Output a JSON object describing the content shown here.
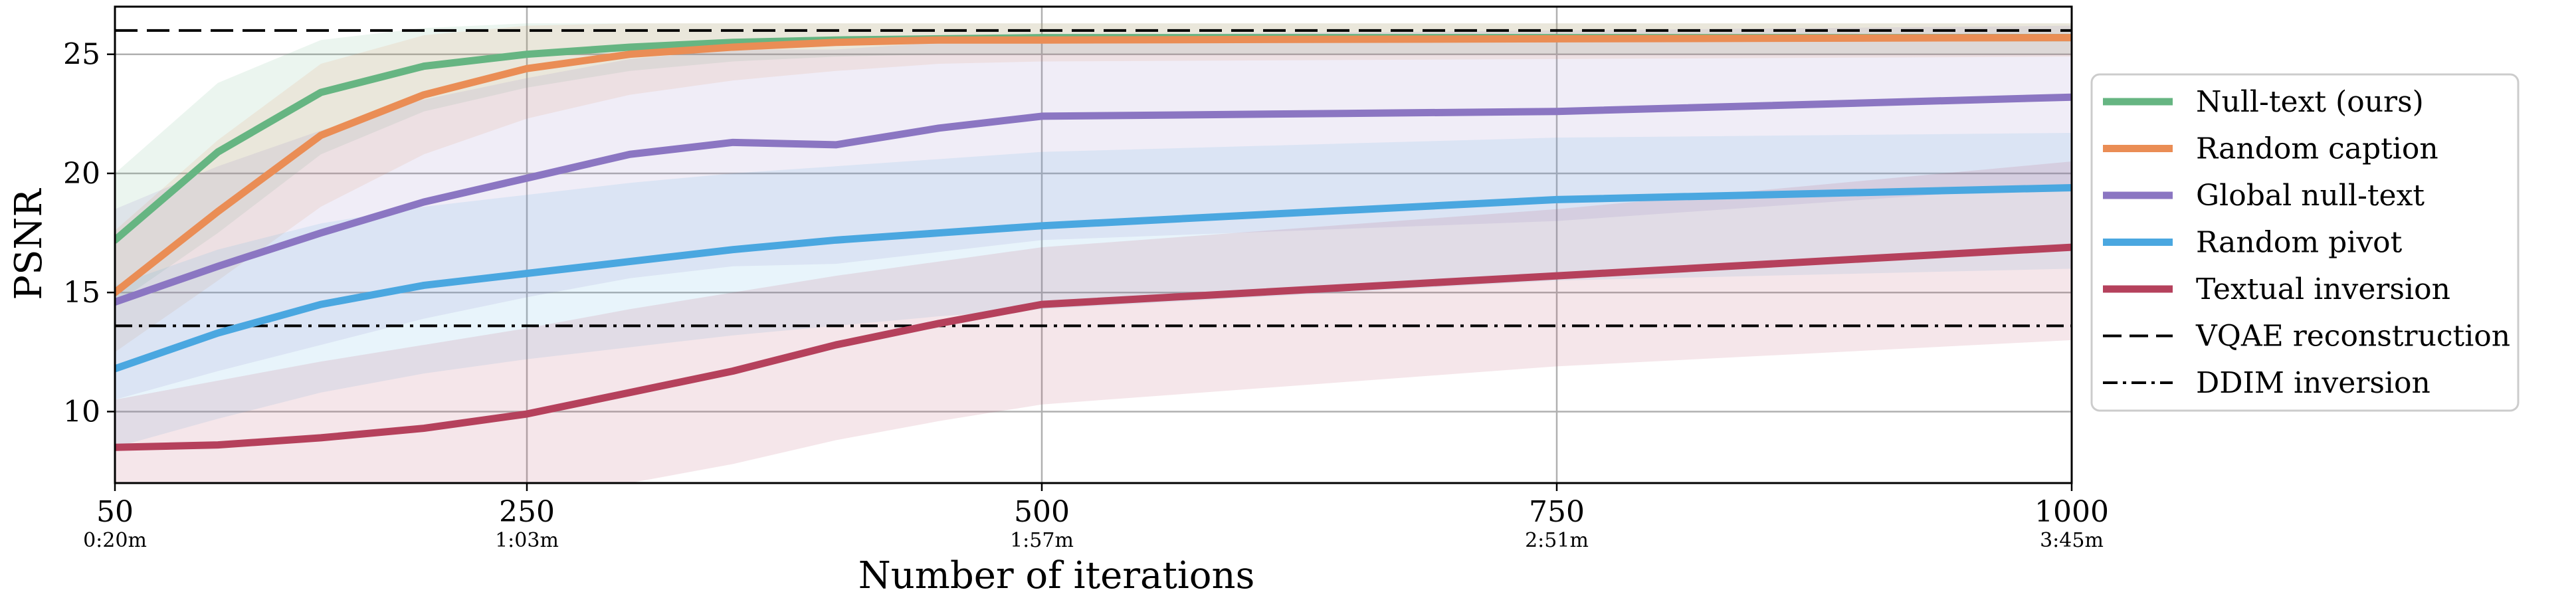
{
  "chart_data": {
    "type": "line",
    "title": "",
    "xlabel": "Number of iterations",
    "ylabel": "PSNR",
    "xlim": [
      50,
      1000
    ],
    "ylim": [
      7,
      27
    ],
    "grid": true,
    "legend_position": "right",
    "x_ticks": [
      50,
      250,
      500,
      750,
      1000
    ],
    "x_tick_labels": [
      "50",
      "250",
      "500",
      "750",
      "1000"
    ],
    "x_tick_sublabels": [
      "0:20m",
      "1:03m",
      "1:57m",
      "2:51m",
      "3:45m"
    ],
    "y_ticks": [
      10,
      15,
      20,
      25
    ],
    "y_tick_labels": [
      "10",
      "15",
      "20",
      "25"
    ],
    "series": [
      {
        "name": "Null-text (ours)",
        "color": "#66b582",
        "x": [
          50,
          100,
          150,
          200,
          250,
          300,
          350,
          400,
          450,
          500,
          1000
        ],
        "y": [
          17.2,
          20.9,
          23.4,
          24.5,
          25.0,
          25.3,
          25.5,
          25.6,
          25.65,
          25.7,
          25.7
        ],
        "lower": [
          14.5,
          17.5,
          20.8,
          22.6,
          23.6,
          24.3,
          24.7,
          24.9,
          25.0,
          25.0,
          25.0
        ],
        "upper": [
          20.0,
          23.8,
          25.6,
          26.1,
          26.3,
          26.3,
          26.3,
          26.3,
          26.3,
          26.3,
          26.3
        ]
      },
      {
        "name": "Random caption",
        "color": "#ea8d55",
        "x": [
          50,
          100,
          150,
          200,
          250,
          300,
          350,
          400,
          450,
          500,
          1000
        ],
        "y": [
          15.0,
          18.4,
          21.6,
          23.3,
          24.4,
          25.0,
          25.3,
          25.5,
          25.6,
          25.6,
          25.7
        ],
        "lower": [
          12.5,
          15.5,
          18.6,
          20.8,
          22.3,
          23.3,
          23.9,
          24.3,
          24.6,
          24.7,
          24.9
        ],
        "upper": [
          17.6,
          21.4,
          24.6,
          25.8,
          26.2,
          26.3,
          26.3,
          26.3,
          26.3,
          26.3,
          26.3
        ]
      },
      {
        "name": "Global null-text",
        "color": "#8b76c2",
        "x": [
          50,
          100,
          150,
          200,
          250,
          300,
          350,
          400,
          450,
          500,
          750,
          1000
        ],
        "y": [
          14.6,
          16.1,
          17.5,
          18.8,
          19.8,
          20.8,
          21.3,
          21.2,
          21.9,
          22.4,
          22.6,
          23.2
        ],
        "lower": [
          10.5,
          11.7,
          12.8,
          13.9,
          14.8,
          15.6,
          16.1,
          16.2,
          16.7,
          17.2,
          18.0,
          19.5
        ],
        "upper": [
          18.5,
          20.3,
          21.8,
          23.1,
          24.0,
          24.8,
          25.2,
          25.2,
          25.5,
          25.8,
          26.0,
          26.2
        ]
      },
      {
        "name": "Random pivot",
        "color": "#4aa7e0",
        "x": [
          50,
          100,
          150,
          200,
          250,
          300,
          350,
          400,
          450,
          500,
          750,
          1000
        ],
        "y": [
          11.8,
          13.3,
          14.5,
          15.3,
          15.8,
          16.3,
          16.8,
          17.2,
          17.5,
          17.8,
          18.9,
          19.4
        ],
        "lower": [
          8.5,
          9.7,
          10.8,
          11.6,
          12.2,
          12.7,
          13.2,
          13.6,
          14.0,
          14.3,
          15.5,
          16.0
        ],
        "upper": [
          15.3,
          16.8,
          17.9,
          18.6,
          19.1,
          19.6,
          20.0,
          20.3,
          20.6,
          20.9,
          21.5,
          21.7
        ]
      },
      {
        "name": "Textual inversion",
        "color": "#b5415c",
        "x": [
          50,
          100,
          150,
          200,
          250,
          300,
          350,
          400,
          450,
          500,
          750,
          1000
        ],
        "y": [
          8.5,
          8.6,
          8.9,
          9.3,
          9.9,
          10.8,
          11.7,
          12.8,
          13.7,
          14.5,
          15.7,
          16.9
        ],
        "lower": [
          7.0,
          7.0,
          7.0,
          7.0,
          7.0,
          7.0,
          7.8,
          8.8,
          9.6,
          10.3,
          11.9,
          13.0
        ],
        "upper": [
          10.5,
          11.3,
          12.1,
          12.8,
          13.5,
          14.3,
          15.0,
          15.7,
          16.3,
          16.9,
          18.5,
          20.5
        ]
      }
    ],
    "reference_lines": [
      {
        "name": "VQAE reconstruction",
        "y": 26.0,
        "style": "dashed",
        "color": "#000000"
      },
      {
        "name": "DDIM inversion",
        "y": 13.6,
        "style": "dashdot",
        "color": "#000000"
      }
    ]
  }
}
